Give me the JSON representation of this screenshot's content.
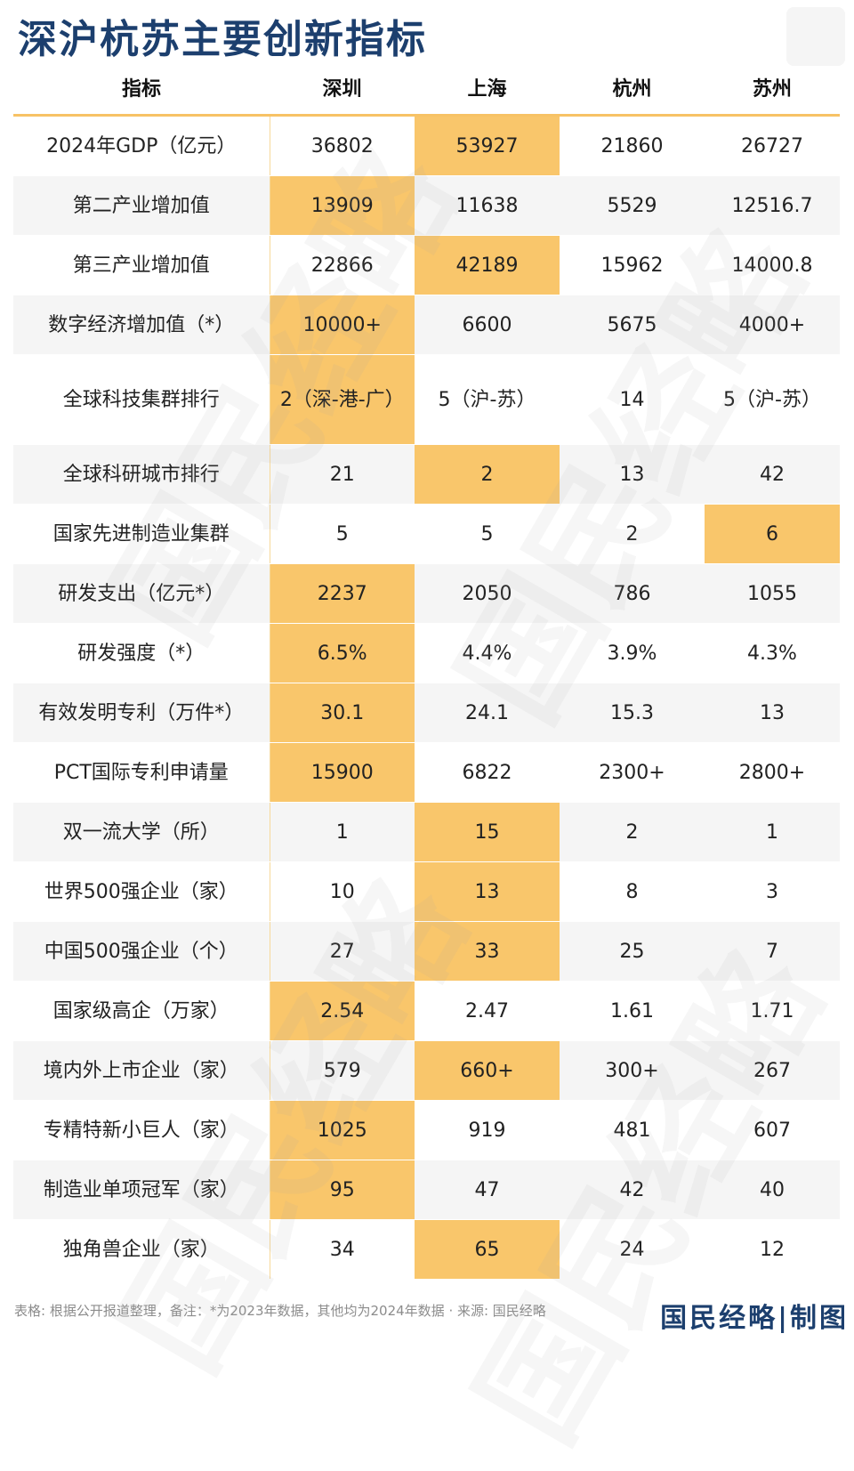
{
  "title": "深沪杭苏主要创新指标",
  "header": [
    "指标",
    "深圳",
    "上海",
    "杭州",
    "苏州"
  ],
  "rows": [
    {
      "label": "2024年GDP（亿元）",
      "values": [
        "36802",
        "53927",
        "21860",
        "26727"
      ],
      "highlight": 1
    },
    {
      "label": "第二产业增加值",
      "values": [
        "13909",
        "11638",
        "5529",
        "12516.7"
      ],
      "highlight": 0
    },
    {
      "label": "第三产业增加值",
      "values": [
        "22866",
        "42189",
        "15962",
        "14000.8"
      ],
      "highlight": 1
    },
    {
      "label": "数字经济增加值（*）",
      "values": [
        "10000+",
        "6600",
        "5675",
        "4000+"
      ],
      "highlight": 0
    },
    {
      "label": "全球科技集群排行",
      "values": [
        "2（深-港-广）",
        "5（沪-苏）",
        "14",
        "5（沪-苏）"
      ],
      "highlight": 0
    },
    {
      "label": "全球科研城市排行",
      "values": [
        "21",
        "2",
        "13",
        "42"
      ],
      "highlight": 1
    },
    {
      "label": "国家先进制造业集群",
      "values": [
        "5",
        "5",
        "2",
        "6"
      ],
      "highlight": 3
    },
    {
      "label": "研发支出（亿元*）",
      "values": [
        "2237",
        "2050",
        "786",
        "1055"
      ],
      "highlight": 0
    },
    {
      "label": "研发强度（*）",
      "values": [
        "6.5%",
        "4.4%",
        "3.9%",
        "4.3%"
      ],
      "highlight": 0
    },
    {
      "label": "有效发明专利（万件*）",
      "values": [
        "30.1",
        "24.1",
        "15.3",
        "13"
      ],
      "highlight": 0
    },
    {
      "label": "PCT国际专利申请量",
      "values": [
        "15900",
        "6822",
        "2300+",
        "2800+"
      ],
      "highlight": 0
    },
    {
      "label": "双一流大学（所）",
      "values": [
        "1",
        "15",
        "2",
        "1"
      ],
      "highlight": 1
    },
    {
      "label": "世界500强企业（家）",
      "values": [
        "10",
        "13",
        "8",
        "3"
      ],
      "highlight": 1
    },
    {
      "label": "中国500强企业（个）",
      "values": [
        "27",
        "33",
        "25",
        "7"
      ],
      "highlight": 1
    },
    {
      "label": "国家级高企（万家）",
      "values": [
        "2.54",
        "2.47",
        "1.61",
        "1.71"
      ],
      "highlight": 0
    },
    {
      "label": "境内外上市企业（家）",
      "values": [
        "579",
        "660+",
        "300+",
        "267"
      ],
      "highlight": 1
    },
    {
      "label": "专精特新小巨人（家）",
      "values": [
        "1025",
        "919",
        "481",
        "607"
      ],
      "highlight": 0
    },
    {
      "label": "制造业单项冠军（家）",
      "values": [
        "95",
        "47",
        "42",
        "40"
      ],
      "highlight": 0
    },
    {
      "label": "独角兽企业（家）",
      "values": [
        "34",
        "65",
        "24",
        "12"
      ],
      "highlight": 1
    }
  ],
  "footer": "表格:  根据公开报道整理，备注：*为2023年数据，其他均为2024年数据 · 来源: 国民经略",
  "brand": "国民经略|制图",
  "watermark": "国民经略",
  "colors": {
    "highlight": "#f9c66b",
    "title": "#1c3f6e",
    "rule": "#f7c265"
  }
}
